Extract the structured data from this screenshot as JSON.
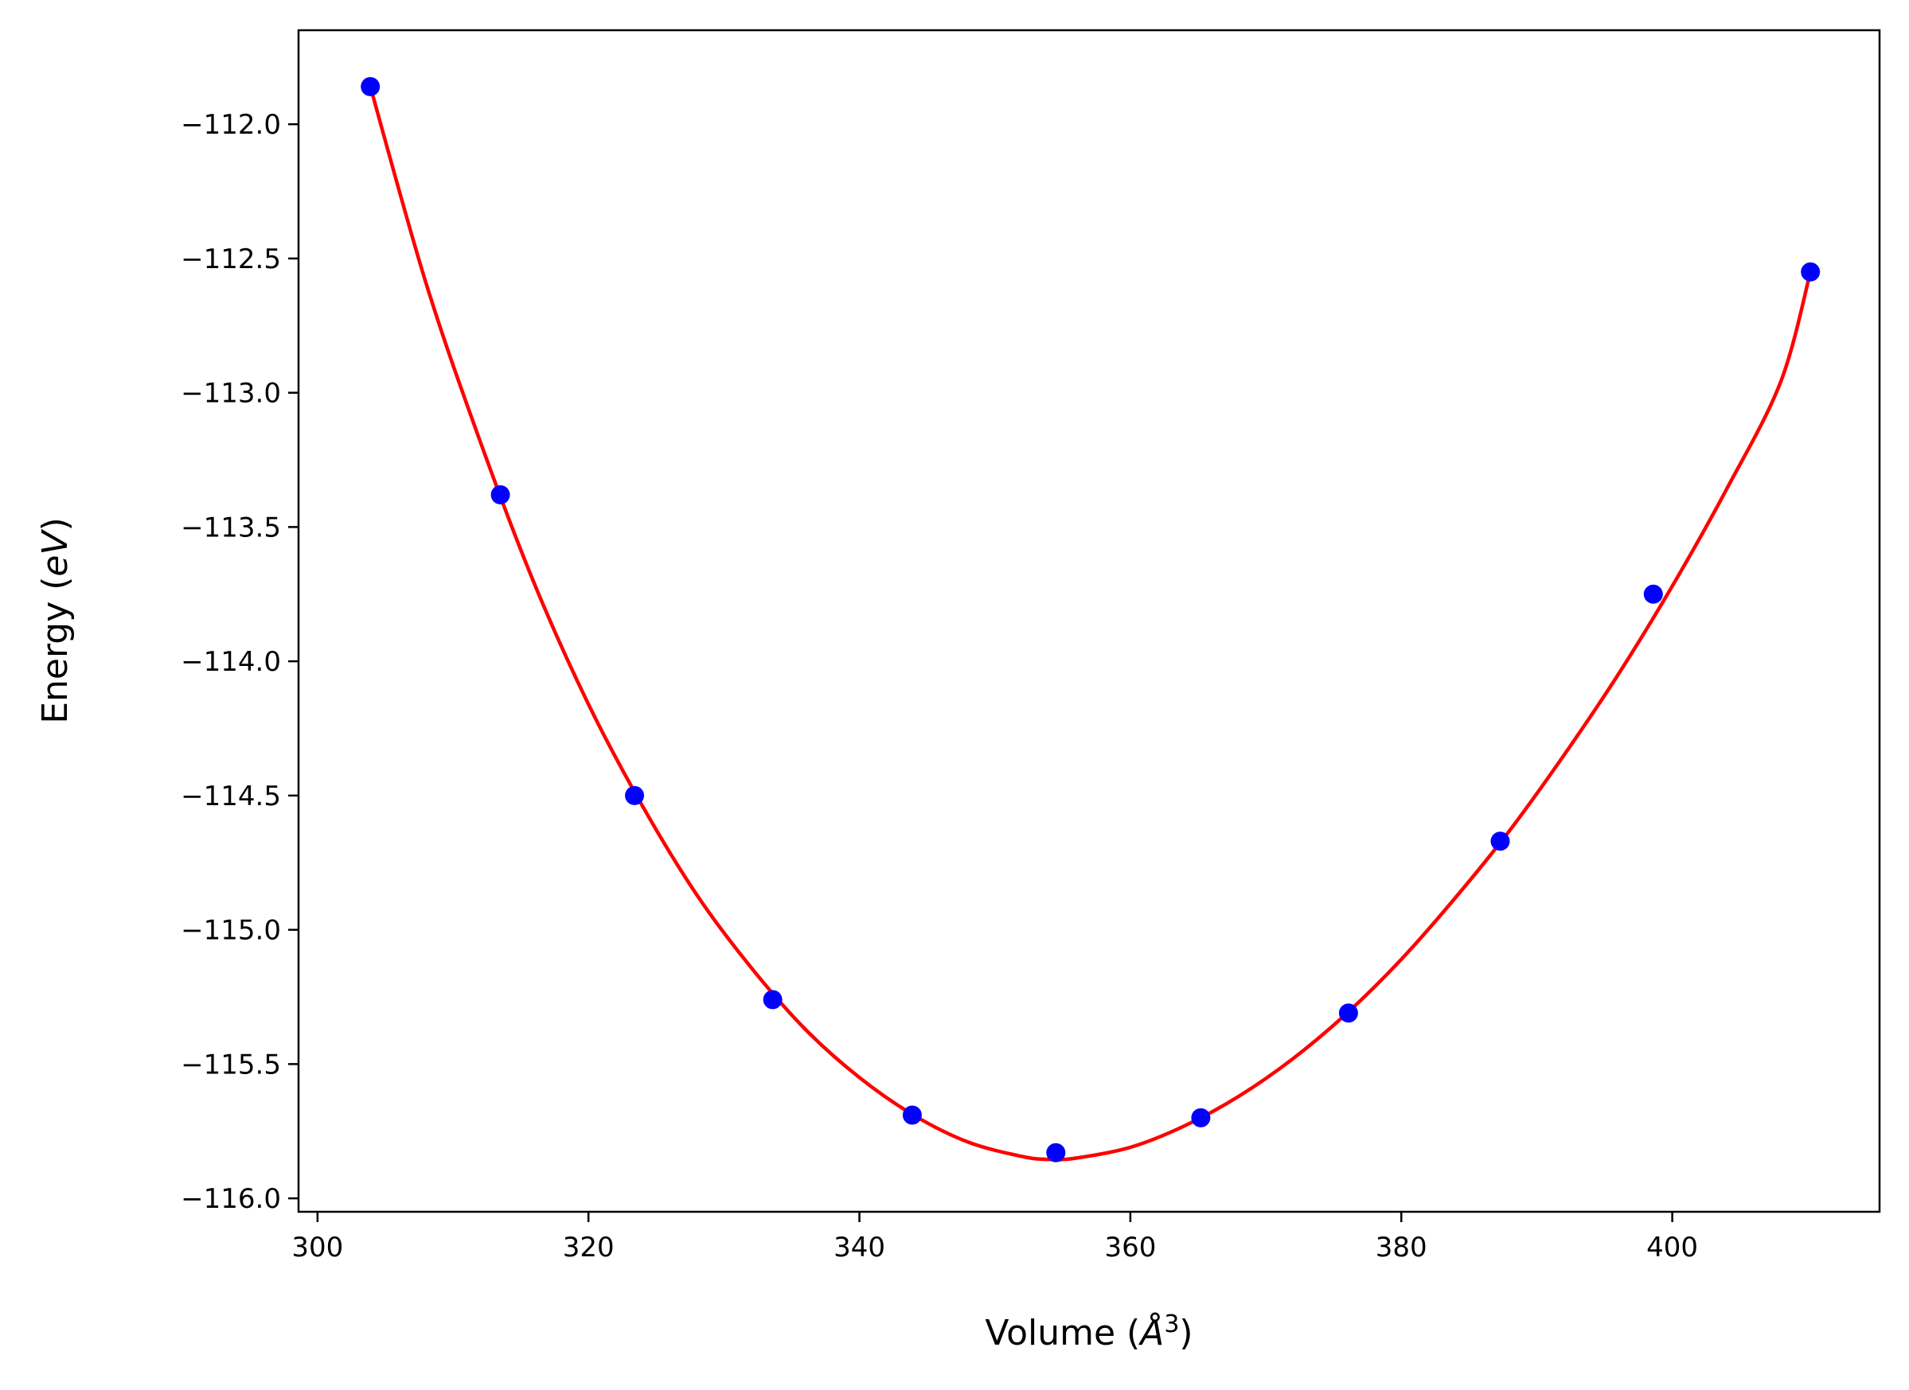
{
  "chart_data": {
    "type": "scatter",
    "title": "",
    "xlabel": "Volume ($\\AA^3$)",
    "ylabel": "Energy ($eV$)",
    "xlabel_parts": {
      "prefix": "Volume (",
      "symbol": "Å",
      "sup": "3",
      "suffix": ")"
    },
    "ylabel_parts": {
      "prefix": "Energy (",
      "symbol": "eV",
      "suffix": ")"
    },
    "xlim": [
      298.6,
      415.3
    ],
    "ylim": [
      -116.05,
      -111.65
    ],
    "x_ticks": [
      300,
      320,
      340,
      360,
      380,
      400
    ],
    "y_ticks": [
      -112.0,
      -112.5,
      -113.0,
      -113.5,
      -114.0,
      -114.5,
      -115.0,
      -115.5,
      -116.0
    ],
    "x_tick_labels": [
      "300",
      "320",
      "340",
      "360",
      "380",
      "400"
    ],
    "y_tick_labels": [
      "−112.0",
      "−112.5",
      "−113.0",
      "−113.5",
      "−114.0",
      "−114.5",
      "−115.0",
      "−115.5",
      "−116.0"
    ],
    "grid": false,
    "series": [
      {
        "kind": "points",
        "color": "#0000ff",
        "x": [
          303.9,
          313.5,
          323.4,
          333.6,
          343.9,
          354.5,
          365.2,
          376.1,
          387.3,
          398.6,
          410.2
        ],
        "y": [
          -111.86,
          -113.38,
          -114.5,
          -115.26,
          -115.69,
          -115.83,
          -115.7,
          -115.31,
          -114.67,
          -113.75,
          -112.55
        ]
      },
      {
        "kind": "fit-curve",
        "color": "#ff0000",
        "x": [
          303.9,
          308.0,
          312.0,
          316.0,
          320.0,
          324.0,
          328.0,
          332.0,
          336.0,
          340.0,
          344.0,
          348.0,
          352.0,
          354.0,
          356.0,
          360.0,
          364.0,
          368.0,
          372.0,
          376.0,
          380.0,
          384.0,
          388.0,
          392.0,
          396.0,
          400.0,
          404.0,
          408.0,
          410.2
        ],
        "y": [
          -111.86,
          -112.59,
          -113.18,
          -113.71,
          -114.16,
          -114.54,
          -114.87,
          -115.14,
          -115.37,
          -115.55,
          -115.69,
          -115.79,
          -115.844,
          -115.855,
          -115.85,
          -115.81,
          -115.73,
          -115.62,
          -115.48,
          -115.31,
          -115.11,
          -114.88,
          -114.63,
          -114.35,
          -114.05,
          -113.72,
          -113.36,
          -112.96,
          -112.55
        ]
      }
    ]
  }
}
